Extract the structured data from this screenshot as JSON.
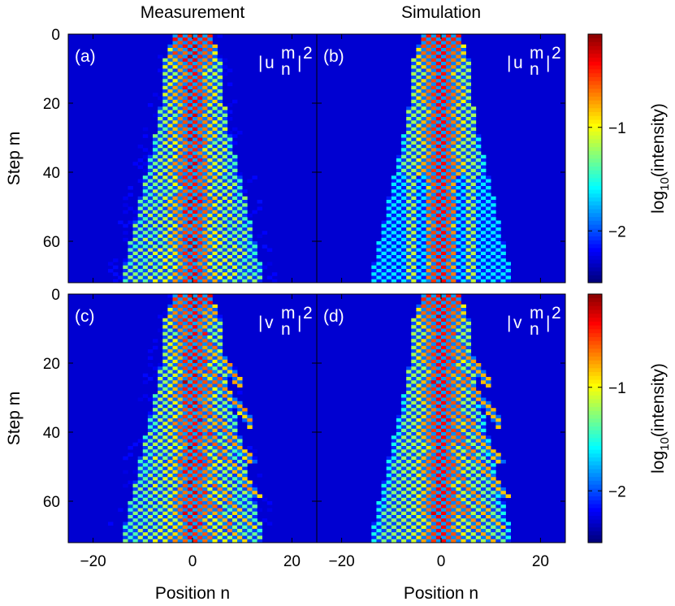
{
  "chart_data": {
    "type": "heatmap",
    "column_titles": [
      "Measurement",
      "Simulation"
    ],
    "xlabel": "Position n",
    "ylabel": "Step m",
    "xlim": [
      -25,
      25
    ],
    "ylim": [
      72,
      0
    ],
    "xticks": [
      -20,
      0,
      20
    ],
    "xtick_labels": [
      "−20",
      "0",
      "20"
    ],
    "yticks": [
      0,
      20,
      40,
      60
    ],
    "ytick_labels": [
      "0",
      "20",
      "40",
      "60"
    ],
    "colorbar": {
      "label_main": "log",
      "label_sub": "10",
      "label_rest": "(intensity)",
      "range": [
        -2.5,
        -0.1
      ],
      "ticks": [
        -1,
        -2
      ],
      "tick_labels": [
        "−1",
        "−2"
      ]
    },
    "panels": [
      {
        "id": "a",
        "label": "(a)",
        "quantity": "u",
        "kind": "measurement"
      },
      {
        "id": "b",
        "label": "(b)",
        "quantity": "u",
        "kind": "simulation"
      },
      {
        "id": "c",
        "label": "(c)",
        "quantity": "v",
        "kind": "measurement"
      },
      {
        "id": "d",
        "label": "(d)",
        "quantity": "v",
        "kind": "simulation"
      }
    ],
    "quantity_label": {
      "bar": "|",
      "superscript": "m",
      "subscript": "n",
      "close": "|",
      "power": "2"
    },
    "grid": false
  }
}
